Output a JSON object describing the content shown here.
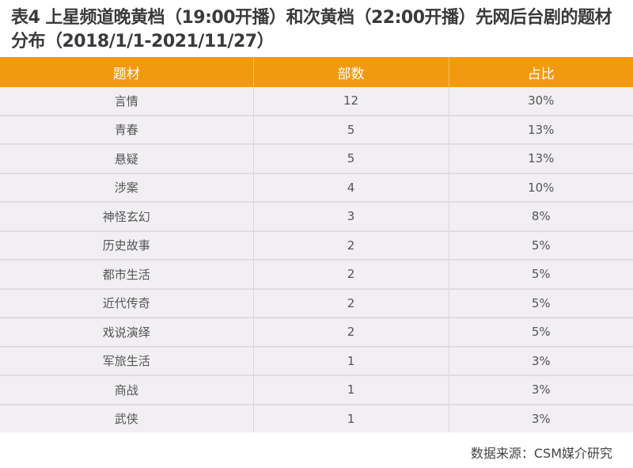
{
  "title": "表4 上星频道晚黄档（19:00开播）和次黄档（22:00开播）先网后台剧的题材分布（2018/1/1-2021/11/27）",
  "colors": {
    "header_bg": "#f29a0e",
    "row_bg": "#f1eff2"
  },
  "chart_data": {
    "type": "table",
    "columns": [
      "题材",
      "部数",
      "占比"
    ],
    "rows": [
      [
        "言情",
        "12",
        "30%"
      ],
      [
        "青春",
        "5",
        "13%"
      ],
      [
        "悬疑",
        "5",
        "13%"
      ],
      [
        "涉案",
        "4",
        "10%"
      ],
      [
        "神怪玄幻",
        "3",
        "8%"
      ],
      [
        "历史故事",
        "2",
        "5%"
      ],
      [
        "都市生活",
        "2",
        "5%"
      ],
      [
        "近代传奇",
        "2",
        "5%"
      ],
      [
        "戏说演绎",
        "2",
        "5%"
      ],
      [
        "军旅生活",
        "1",
        "3%"
      ],
      [
        "商战",
        "1",
        "3%"
      ],
      [
        "武侠",
        "1",
        "3%"
      ]
    ]
  },
  "source": "数据来源：CSM媒介研究"
}
